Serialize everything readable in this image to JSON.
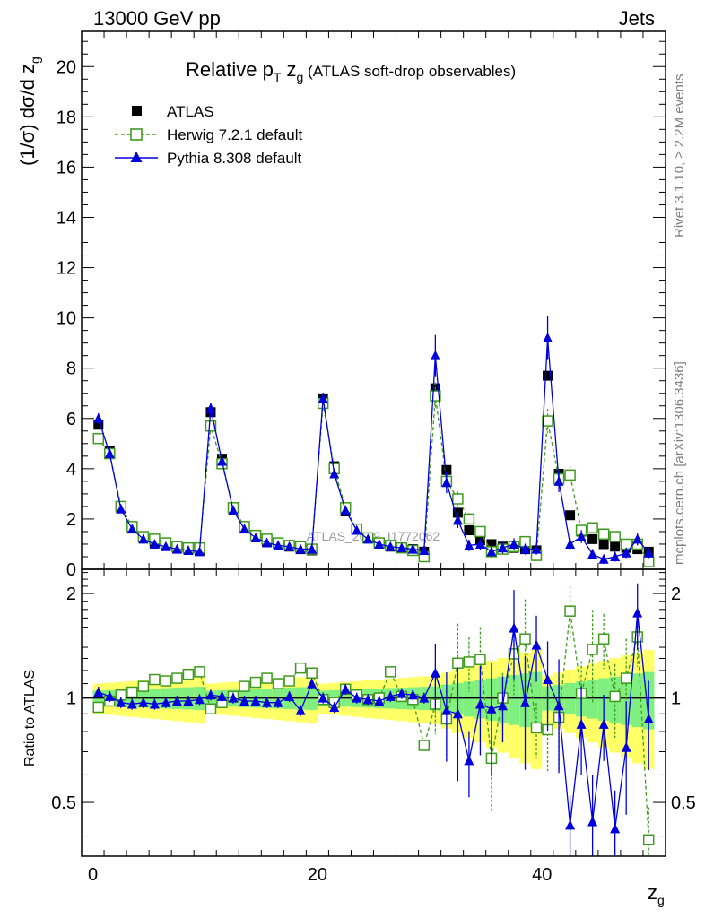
{
  "header": {
    "left": "13000 GeV pp",
    "right": "Jets"
  },
  "title": {
    "main": "Relative p",
    "sub_T": "T",
    "var": " z",
    "sub_g": "g",
    "paren": " (ATLAS soft-drop observables)"
  },
  "ylabel_main": {
    "pre": "(1/σ) dσ/d z",
    "sub": "g"
  },
  "ylabel_ratio": "Ratio to ATLAS",
  "xlabel": {
    "main": "z",
    "sub": "g"
  },
  "side_right_top": "Rivet 3.1.10, ≥ 2.2M events",
  "side_right_bottom": "mcplots.cern.ch [arXiv:1306.3436]",
  "watermark": "ATLAS_2019_I1772062",
  "legend": [
    {
      "key": "atlas",
      "label": "ATLAS"
    },
    {
      "key": "herwig",
      "label": "Herwig 7.2.1 default"
    },
    {
      "key": "pythia",
      "label": "Pythia 8.308 default"
    }
  ],
  "colors": {
    "atlas": "#000000",
    "herwig": "#3f9a1f",
    "pythia": "#0000dd",
    "band_inner": "#7ff07f",
    "band_outer": "#ffff66"
  },
  "chart_data": [
    {
      "type": "scatter",
      "panel": "main",
      "xlim": [
        -1,
        51
      ],
      "ylim": [
        0,
        21.4
      ],
      "yticks": [
        0,
        2,
        4,
        6,
        8,
        10,
        12,
        14,
        16,
        18,
        20
      ],
      "x": [
        0.5,
        1.5,
        2.5,
        3.5,
        4.5,
        5.5,
        6.5,
        7.5,
        8.5,
        9.5,
        10.5,
        11.5,
        12.5,
        13.5,
        14.5,
        15.5,
        16.5,
        17.5,
        18.5,
        19.5,
        20.5,
        21.5,
        22.5,
        23.5,
        24.5,
        25.5,
        26.5,
        27.5,
        28.5,
        29.5,
        30.5,
        31.5,
        32.5,
        33.5,
        34.5,
        35.5,
        36.5,
        37.5,
        38.5,
        39.5,
        40.5,
        41.5,
        42.5,
        43.5,
        44.5,
        45.5,
        46.5,
        47.5,
        48.5,
        49.5
      ],
      "series": [
        {
          "name": "ATLAS",
          "values": [
            5.75,
            4.7,
            2.45,
            1.65,
            1.25,
            1.05,
            0.95,
            0.85,
            0.8,
            0.75,
            6.25,
            4.4,
            2.4,
            1.65,
            1.3,
            1.1,
            1.0,
            0.9,
            0.8,
            0.75,
            6.8,
            4.1,
            2.3,
            1.6,
            1.25,
            1.05,
            0.9,
            0.85,
            0.8,
            0.7,
            7.2,
            3.95,
            2.25,
            1.55,
            1.15,
            1.0,
            0.9,
            0.85,
            0.8,
            0.75,
            7.7,
            3.8,
            2.15,
            1.5,
            1.2,
            1.0,
            0.9,
            0.85,
            0.8,
            0.7
          ]
        },
        {
          "name": "Herwig 7.2.1 default",
          "values": [
            5.2,
            4.6,
            2.5,
            1.7,
            1.3,
            1.2,
            1.05,
            0.9,
            0.85,
            0.85,
            5.7,
            4.2,
            2.45,
            1.7,
            1.35,
            1.2,
            1.05,
            0.95,
            0.9,
            0.8,
            6.6,
            4.0,
            2.45,
            1.6,
            1.25,
            1.05,
            0.95,
            0.85,
            0.75,
            0.5,
            6.9,
            3.5,
            2.8,
            2.0,
            1.5,
            0.7,
            0.8,
            0.9,
            1.1,
            0.55,
            5.9,
            3.6,
            3.75,
            1.55,
            1.65,
            1.4,
            1.3,
            1.0,
            1.0,
            0.3
          ]
        },
        {
          "name": "Pythia 8.308 default",
          "values": [
            6.0,
            4.6,
            2.4,
            1.6,
            1.2,
            1.0,
            0.9,
            0.8,
            0.75,
            0.7,
            6.4,
            4.3,
            2.35,
            1.6,
            1.25,
            1.05,
            0.95,
            0.9,
            0.8,
            0.8,
            6.8,
            3.8,
            2.35,
            1.55,
            1.2,
            1.0,
            0.9,
            0.85,
            0.8,
            0.75,
            8.5,
            3.45,
            1.95,
            0.95,
            1.0,
            0.7,
            0.85,
            1.0,
            0.8,
            0.8,
            9.2,
            3.5,
            1.0,
            1.3,
            0.6,
            0.4,
            0.5,
            0.65,
            1.2,
            0.65
          ]
        }
      ]
    },
    {
      "type": "scatter",
      "panel": "ratio",
      "ylabel": "Ratio to ATLAS",
      "xlabel": "z_g",
      "xlim": [
        -1,
        51
      ],
      "xticks": [
        0,
        20,
        40
      ],
      "ylim": [
        0.35,
        2.35
      ],
      "yticks": [
        0.5,
        1,
        2
      ],
      "ytick_labels": [
        "0.5",
        "1",
        "2"
      ],
      "x": [
        0.5,
        1.5,
        2.5,
        3.5,
        4.5,
        5.5,
        6.5,
        7.5,
        8.5,
        9.5,
        10.5,
        11.5,
        12.5,
        13.5,
        14.5,
        15.5,
        16.5,
        17.5,
        18.5,
        19.5,
        20.5,
        21.5,
        22.5,
        23.5,
        24.5,
        25.5,
        26.5,
        27.5,
        28.5,
        29.5,
        30.5,
        31.5,
        32.5,
        33.5,
        34.5,
        35.5,
        36.5,
        37.5,
        38.5,
        39.5,
        40.5,
        41.5,
        42.5,
        43.5,
        44.5,
        45.5,
        46.5,
        47.5,
        48.5,
        49.5
      ],
      "series": [
        {
          "name": "Herwig 7.2.1 default",
          "values": [
            0.94,
            0.98,
            1.02,
            1.04,
            1.08,
            1.13,
            1.12,
            1.14,
            1.17,
            1.19,
            0.93,
            0.97,
            1.01,
            1.08,
            1.11,
            1.14,
            1.1,
            1.12,
            1.22,
            1.18,
            0.99,
            0.97,
            1.06,
            1.02,
            0.99,
            1.0,
            1.19,
            1.01,
            0.99,
            0.73,
            0.96,
            0.87,
            1.26,
            1.27,
            1.29,
            0.67,
            1.0,
            1.34,
            1.48,
            0.82,
            0.81,
            0.88,
            1.78,
            1.03,
            1.38,
            1.48,
            1.01,
            1.14,
            1.5,
            0.39
          ]
        },
        {
          "name": "Pythia 8.308 default",
          "values": [
            1.04,
            1.01,
            0.97,
            0.96,
            0.97,
            0.96,
            0.97,
            0.98,
            0.98,
            0.99,
            1.02,
            1.01,
            1.0,
            0.98,
            0.98,
            0.97,
            0.97,
            1.01,
            0.92,
            1.1,
            1.0,
            0.94,
            1.06,
            1.0,
            0.99,
            0.98,
            1.01,
            1.03,
            1.02,
            1.0,
            1.18,
            0.92,
            0.9,
            0.66,
            0.96,
            0.93,
            0.95,
            1.59,
            0.97,
            1.42,
            1.13,
            0.95,
            0.43,
            0.84,
            0.44,
            0.84,
            0.42,
            0.72,
            1.76,
            0.87
          ]
        }
      ]
    }
  ]
}
